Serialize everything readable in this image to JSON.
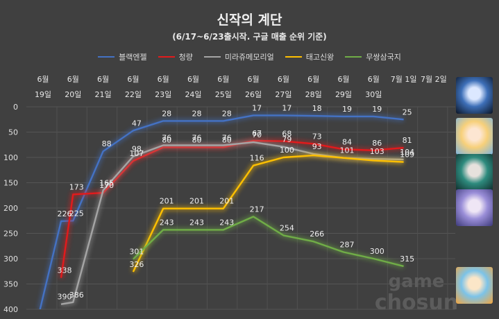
{
  "chart_data": {
    "type": "line",
    "title": "신작의 계단",
    "subtitle": "(6/17~6/23출시작. 구글 매출 순위 기준)",
    "categories": [
      [
        "6월",
        "19일"
      ],
      [
        "6월",
        "20일"
      ],
      [
        "6월",
        "21일"
      ],
      [
        "6월",
        "22일"
      ],
      [
        "6월",
        "23일"
      ],
      [
        "6월",
        "24일"
      ],
      [
        "6월",
        "25일"
      ],
      [
        "6월",
        "26일"
      ],
      [
        "6월",
        "27일"
      ],
      [
        "6월",
        "28일"
      ],
      [
        "6월",
        "29일"
      ],
      [
        "6월",
        "30일"
      ],
      [
        "7월 1일",
        ""
      ],
      [
        "7월 2일",
        ""
      ]
    ],
    "y_reversed": true,
    "ylim": [
      0,
      400
    ],
    "yticks": [
      0,
      50,
      100,
      150,
      200,
      250,
      300,
      350,
      400
    ],
    "grid": true,
    "legend_position": "top",
    "series": [
      {
        "name": "블랙엔젤",
        "color": "#4472c4",
        "x": [
          -0.1,
          0.6,
          1,
          2,
          3,
          4,
          5,
          6,
          7,
          8,
          9,
          10,
          11,
          12
        ],
        "values": [
          400,
          226,
          225,
          88,
          47,
          28,
          28,
          28,
          17,
          17,
          18,
          19,
          19,
          25
        ],
        "labels": [
          null,
          226,
          225,
          88,
          47,
          28,
          28,
          28,
          17,
          17,
          18,
          19,
          19,
          25
        ]
      },
      {
        "name": "청량",
        "color": "#e31a1c",
        "x": [
          0.6,
          1,
          2,
          3,
          4,
          5,
          6,
          7,
          8,
          9,
          10,
          11,
          12
        ],
        "values": [
          338,
          173,
          170,
          107,
          80,
          80,
          80,
          67,
          68,
          73,
          84,
          86,
          81
        ],
        "labels": [
          338,
          173,
          170,
          107,
          80,
          80,
          80,
          67,
          68,
          73,
          84,
          86,
          81
        ]
      },
      {
        "name": "미라쥬메모리얼",
        "color": "#a5a5a5",
        "x": [
          0.6,
          1,
          2,
          3,
          4,
          5,
          6,
          7,
          8,
          9,
          10,
          11,
          12
        ],
        "values": [
          390,
          386,
          165,
          98,
          76,
          76,
          76,
          70,
          79,
          93,
          101,
          103,
          104
        ],
        "labels": [
          390,
          386,
          165,
          98,
          76,
          76,
          76,
          70,
          79,
          93,
          101,
          103,
          104
        ]
      },
      {
        "name": "태고신왕",
        "color": "#ffc000",
        "x": [
          3,
          4,
          5,
          6,
          7,
          8,
          9,
          10,
          11,
          12
        ],
        "values": [
          326,
          201,
          201,
          201,
          116,
          100,
          96,
          101,
          106,
          109
        ],
        "labels": [
          326,
          201,
          201,
          201,
          116,
          100,
          null,
          null,
          null,
          109
        ]
      },
      {
        "name": "무쌍삼국지",
        "color": "#70ad47",
        "x": [
          3,
          4,
          5,
          6,
          7,
          8,
          9,
          10,
          11,
          12
        ],
        "values": [
          301,
          243,
          243,
          243,
          217,
          254,
          266,
          287,
          300,
          315
        ],
        "labels": [
          301,
          243,
          243,
          243,
          217,
          254,
          266,
          287,
          300,
          315
        ]
      }
    ]
  },
  "watermark": {
    "line1": "game",
    "line2": "chosun"
  },
  "thumbnails": [
    {
      "name": "black-angel-thumb",
      "colors": [
        "#0b1424",
        "#3d6fb8",
        "#dce8ff"
      ]
    },
    {
      "name": "cheongryang-thumb",
      "colors": [
        "#7bb4e0",
        "#f7d07a",
        "#fde6d2"
      ]
    },
    {
      "name": "mirage-memorial-thumb",
      "colors": [
        "#0f2b2a",
        "#2e8b7e",
        "#e7e1dd"
      ]
    },
    {
      "name": "taego-sinwang-thumb",
      "colors": [
        "#3d3a7a",
        "#9a8ed8",
        "#efe6f5"
      ]
    },
    {
      "name": "mussang-samgukji-thumb",
      "colors": [
        "#f4a53d",
        "#7cc3e8",
        "#fbe6c8"
      ]
    }
  ]
}
